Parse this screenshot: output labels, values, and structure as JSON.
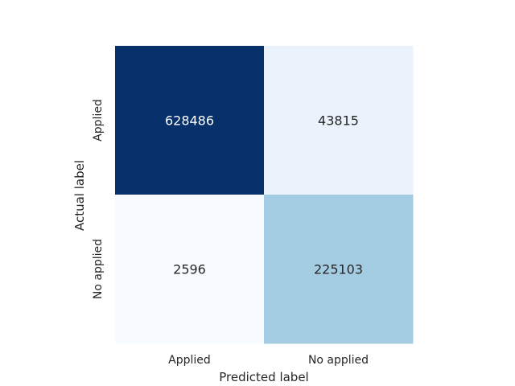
{
  "chart_data": {
    "type": "heatmap",
    "title": "",
    "xlabel": "Predicted label",
    "ylabel": "Actual label",
    "x_categories": [
      "Applied",
      "No applied"
    ],
    "y_categories": [
      "Applied",
      "No applied"
    ],
    "values": [
      [
        628486,
        43815
      ],
      [
        2596,
        225103
      ]
    ],
    "colormap": "Blues",
    "colorbar": false,
    "grid": false,
    "colors": {
      "low": "#f7fbff",
      "high": "#08306b",
      "text_dark": "#262626",
      "text_light": "#ffffff"
    }
  }
}
